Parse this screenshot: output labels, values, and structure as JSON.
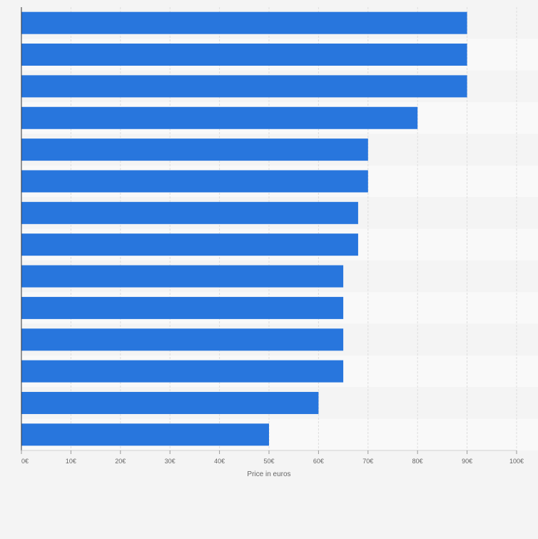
{
  "chart_data": {
    "type": "bar",
    "orientation": "horizontal",
    "categories": [
      "",
      "",
      "",
      "",
      "",
      "",
      "",
      "",
      "",
      "",
      "",
      "",
      "",
      ""
    ],
    "values": [
      90,
      90,
      90,
      80,
      70,
      70,
      68,
      68,
      65,
      65,
      65,
      65,
      60,
      50
    ],
    "xlim": [
      0,
      100
    ],
    "x_ticks": [
      0,
      10,
      20,
      30,
      40,
      50,
      60,
      70,
      80,
      90,
      100
    ],
    "x_tick_labels": [
      "0€",
      "10€",
      "20€",
      "30€",
      "40€",
      "50€",
      "60€",
      "70€",
      "80€",
      "90€",
      "100€"
    ],
    "xlabel": "Price in euros",
    "ylabel": "",
    "title": "",
    "grid": true,
    "bar_color": "#2876dd",
    "band_colors": [
      "#f4f4f4",
      "#f9f9f9"
    ]
  }
}
